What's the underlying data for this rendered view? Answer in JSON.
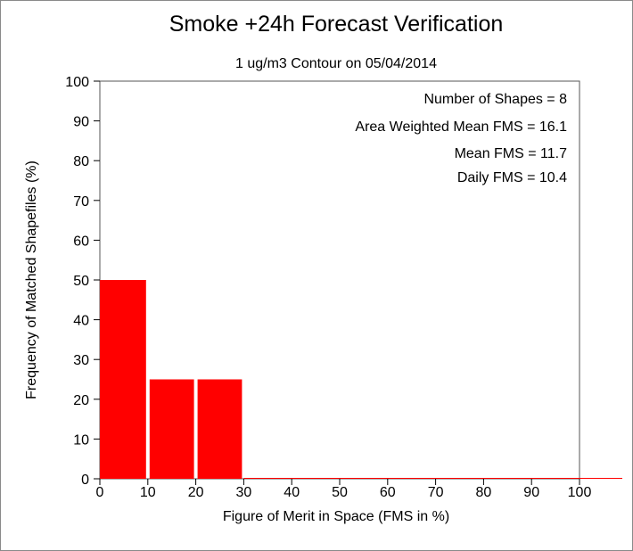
{
  "chart_data": {
    "type": "bar",
    "title": "Smoke +24h Forecast Verification",
    "subtitle": "1 ug/m3 Contour on 05/04/2014",
    "xlabel": "Figure of Merit in Space (FMS in %)",
    "ylabel": "Frequency of Matched Shapefiles (%)",
    "xlim": [
      0,
      100
    ],
    "ylim": [
      0,
      100
    ],
    "xticks": [
      0,
      10,
      20,
      30,
      40,
      50,
      60,
      70,
      80,
      90,
      100
    ],
    "yticks": [
      0,
      10,
      20,
      30,
      40,
      50,
      60,
      70,
      80,
      90,
      100
    ],
    "bins": [
      {
        "from": 0,
        "to": 10,
        "value": 50
      },
      {
        "from": 10,
        "to": 20,
        "value": 25
      },
      {
        "from": 20,
        "to": 30,
        "value": 25
      },
      {
        "from": 30,
        "to": 40,
        "value": 0
      },
      {
        "from": 40,
        "to": 50,
        "value": 0
      },
      {
        "from": 50,
        "to": 60,
        "value": 0
      },
      {
        "from": 60,
        "to": 70,
        "value": 0
      },
      {
        "from": 70,
        "to": 80,
        "value": 0
      },
      {
        "from": 80,
        "to": 90,
        "value": 0
      },
      {
        "from": 90,
        "to": 100,
        "value": 0
      }
    ],
    "bar_color": "#ff0000",
    "grid": false,
    "annotations": [
      "Number of Shapes = 8",
      "Area Weighted Mean FMS = 16.1",
      "Mean FMS = 11.7",
      "Daily FMS = 10.4"
    ]
  }
}
